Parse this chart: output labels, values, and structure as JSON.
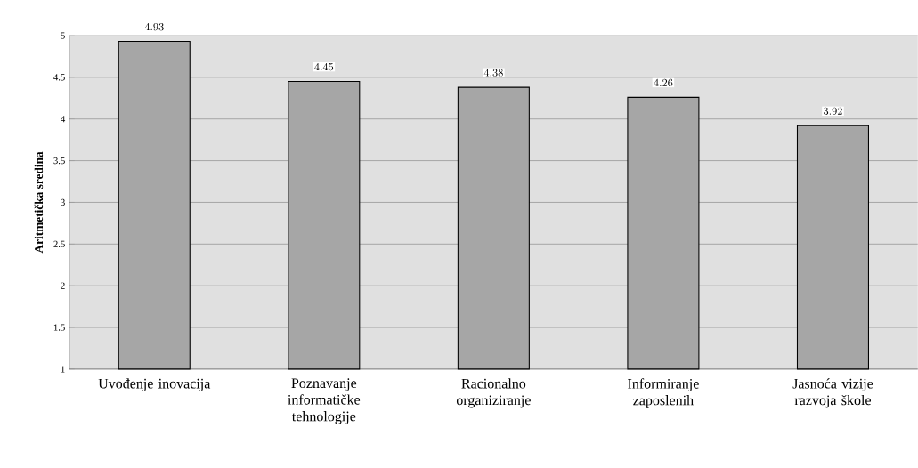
{
  "chart_data": {
    "type": "bar",
    "ylabel": "Aritmetička sredina",
    "categories": [
      "Uvođenje inovacija",
      "Poznavanje informatičke tehnologije",
      "Racionalno organiziranje",
      "Informiranje zaposlenih",
      "Jasnoća vizije razvoja škole"
    ],
    "values": [
      4.93,
      4.45,
      4.38,
      4.26,
      3.92
    ],
    "color": "#a6a6a6",
    "ylim": [
      1,
      5
    ],
    "yticks": [
      1,
      1.5,
      2,
      2.5,
      3,
      3.5,
      4,
      4.5,
      5
    ],
    "grid": "y",
    "data_labels": true
  }
}
